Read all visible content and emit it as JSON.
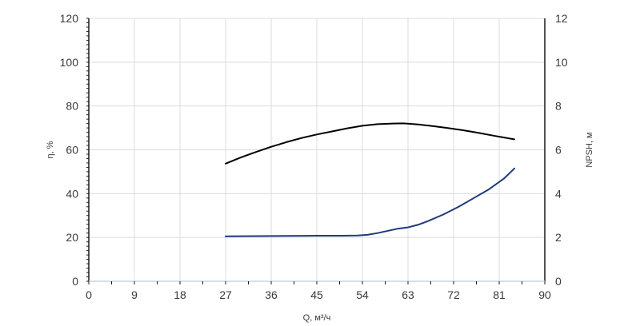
{
  "chart_data": {
    "type": "line",
    "xlabel": "Q, м³/ч",
    "ylabel_left": "η, %",
    "ylabel_right": "NPSH, м",
    "x_ticks": [
      "0",
      "9",
      "18",
      "27",
      "36",
      "45",
      "54",
      "63",
      "72",
      "81",
      "90"
    ],
    "y_left_ticks": [
      "0",
      "20",
      "40",
      "60",
      "80",
      "100",
      "120"
    ],
    "y_right_ticks": [
      "0",
      "2",
      "4",
      "6",
      "8",
      "10",
      "12"
    ],
    "xlim": [
      0,
      90
    ],
    "ylim_left": [
      0,
      120
    ],
    "ylim_right": [
      0,
      12
    ],
    "grid": true,
    "series": [
      {
        "axis": "left",
        "color": "#000000",
        "points": [
          [
            27,
            53.7
          ],
          [
            30,
            56.5
          ],
          [
            33,
            59.0
          ],
          [
            36,
            61.4
          ],
          [
            39,
            63.5
          ],
          [
            42,
            65.4
          ],
          [
            45,
            67.0
          ],
          [
            48,
            68.4
          ],
          [
            51,
            69.8
          ],
          [
            54,
            71.0
          ],
          [
            57,
            71.7
          ],
          [
            60,
            72.0
          ],
          [
            62,
            72.1
          ],
          [
            65,
            71.6
          ],
          [
            68,
            70.8
          ],
          [
            71,
            69.9
          ],
          [
            74,
            68.9
          ],
          [
            77,
            67.7
          ],
          [
            80,
            66.4
          ],
          [
            81.5,
            65.8
          ],
          [
            84,
            64.8
          ]
        ]
      },
      {
        "axis": "right",
        "color": "#1f3a7a",
        "points": [
          [
            27,
            2.05
          ],
          [
            33,
            2.06
          ],
          [
            39,
            2.07
          ],
          [
            45,
            2.08
          ],
          [
            50,
            2.08
          ],
          [
            53,
            2.09
          ],
          [
            55,
            2.12
          ],
          [
            57,
            2.2
          ],
          [
            59,
            2.3
          ],
          [
            61,
            2.4
          ],
          [
            63,
            2.46
          ],
          [
            65,
            2.58
          ],
          [
            67,
            2.75
          ],
          [
            70,
            3.05
          ],
          [
            73,
            3.4
          ],
          [
            76,
            3.8
          ],
          [
            79,
            4.2
          ],
          [
            82,
            4.7
          ],
          [
            84,
            5.15
          ]
        ]
      }
    ]
  }
}
